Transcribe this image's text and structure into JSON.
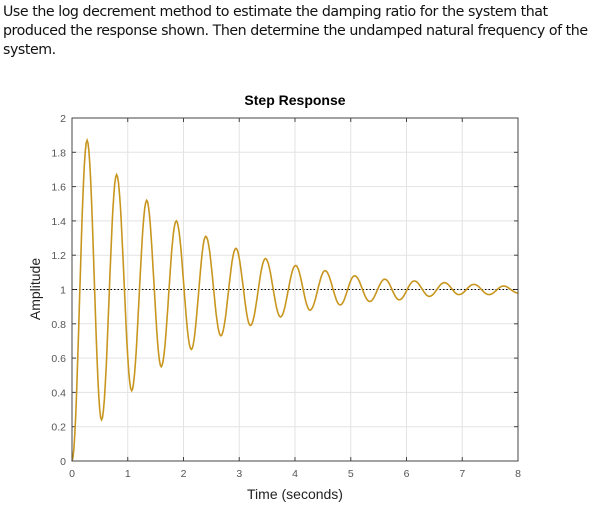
{
  "question": "Use the log decrement method to estimate the damping ratio for the system that produced the response shown.  Then determine the undamped natural frequency of the system.",
  "chart_data": {
    "type": "line",
    "title": "Step Response",
    "xlabel": "Time (seconds)",
    "ylabel": "Amplitude",
    "xlim": [
      0,
      8
    ],
    "ylim": [
      0,
      2
    ],
    "xticks": [
      "0",
      "1",
      "2",
      "3",
      "4",
      "5",
      "6",
      "7",
      "8"
    ],
    "yticks": [
      "0",
      "0.2",
      "0.4",
      "0.6",
      "0.8",
      "1",
      "1.2",
      "1.4",
      "1.6",
      "1.8",
      "2"
    ],
    "grid": true,
    "reference_line": {
      "y": 1,
      "style": "dotted"
    },
    "line_color": "#c8961e",
    "series": [
      {
        "extrema_points": [
          [
            0,
            0
          ],
          [
            0.27,
            1.87
          ],
          [
            0.53,
            0.24
          ],
          [
            0.8,
            1.67
          ],
          [
            1.07,
            0.41
          ],
          [
            1.34,
            1.52
          ],
          [
            1.6,
            0.55
          ],
          [
            1.87,
            1.4
          ],
          [
            2.14,
            0.65
          ],
          [
            2.4,
            1.31
          ],
          [
            2.67,
            0.73
          ],
          [
            2.94,
            1.24
          ],
          [
            3.2,
            0.79
          ],
          [
            3.47,
            1.18
          ],
          [
            3.74,
            0.84
          ],
          [
            4.01,
            1.14
          ],
          [
            4.27,
            0.88
          ],
          [
            4.54,
            1.11
          ],
          [
            4.81,
            0.91
          ],
          [
            5.07,
            1.08
          ],
          [
            5.34,
            0.93
          ],
          [
            5.61,
            1.06
          ],
          [
            5.87,
            0.94
          ],
          [
            6.14,
            1.05
          ],
          [
            6.41,
            0.96
          ],
          [
            6.68,
            1.04
          ],
          [
            6.94,
            0.97
          ],
          [
            7.21,
            1.03
          ],
          [
            7.48,
            0.97
          ],
          [
            7.74,
            1.02
          ],
          [
            8.0,
            0.98
          ]
        ]
      }
    ]
  }
}
